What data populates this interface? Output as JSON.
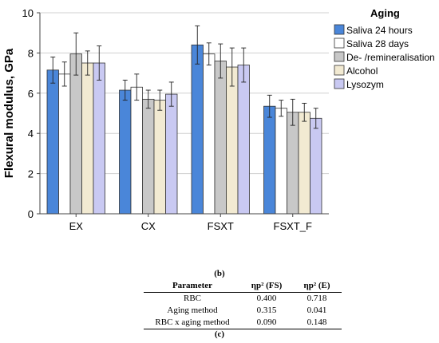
{
  "chart_data": {
    "type": "bar",
    "ylabel": "Flexural modulus, GPa",
    "xlabel": "",
    "ylim": [
      0,
      10
    ],
    "yticks": [
      0,
      2,
      4,
      6,
      8,
      10
    ],
    "categories": [
      "EX",
      "CX",
      "FSXT",
      "FSXT_F"
    ],
    "legend_title": "Aging",
    "legend_position": "right",
    "grid": "horizontal",
    "series": [
      {
        "name": "Saliva 24 hours",
        "color": "#4a86d9",
        "values": [
          7.15,
          6.15,
          8.4,
          5.35
        ],
        "err": [
          0.65,
          0.5,
          0.95,
          0.55
        ]
      },
      {
        "name": "Saliva 28 days",
        "color": "#ffffff",
        "values": [
          6.95,
          6.3,
          7.95,
          5.25
        ],
        "err": [
          0.6,
          0.65,
          0.55,
          0.4
        ]
      },
      {
        "name": "De- /remineralisation",
        "color": "#c8c8c8",
        "values": [
          7.95,
          5.7,
          7.6,
          5.05
        ],
        "err": [
          1.05,
          0.45,
          0.85,
          0.65
        ]
      },
      {
        "name": "Alcohol",
        "color": "#f2ead2",
        "values": [
          7.5,
          5.65,
          7.3,
          5.05
        ],
        "err": [
          0.6,
          0.5,
          0.95,
          0.45
        ]
      },
      {
        "name": "Lysozym",
        "color": "#c9c9f2",
        "values": [
          7.5,
          5.95,
          7.4,
          4.75
        ],
        "err": [
          0.85,
          0.6,
          0.85,
          0.5
        ]
      }
    ]
  },
  "captions": {
    "b": "(b)",
    "c": "(c)"
  },
  "table": {
    "headers": [
      "Parameter",
      "ηp² (FS)",
      "ηp² (E)"
    ],
    "rows": [
      [
        "RBC",
        "0.400",
        "0.718"
      ],
      [
        "Aging method",
        "0.315",
        "0.041"
      ],
      [
        "RBC x aging method",
        "0.090",
        "0.148"
      ]
    ]
  }
}
